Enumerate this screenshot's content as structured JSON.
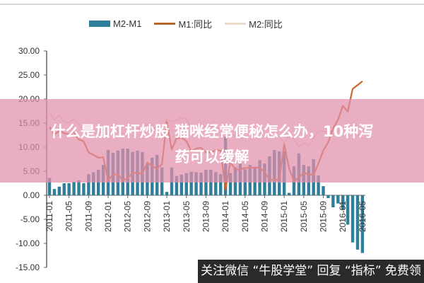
{
  "legend": {
    "items": [
      {
        "label": "M2-M1",
        "type": "bar",
        "color": "#2f7f9a"
      },
      {
        "label": "M1:同比",
        "type": "line",
        "color": "#c8662c"
      },
      {
        "label": "M2:同比",
        "type": "line",
        "color": "#e8d8c8"
      }
    ]
  },
  "overlay": {
    "title_line1": "什么是加杠杆炒股 猫咪经常便秘怎么办，10种泻",
    "title_line2": "药可以缓解"
  },
  "banner": {
    "text": "关注微信 “牛股学堂” 回复 “指标” 免费领"
  },
  "chart_data": {
    "type": "bar",
    "title": "",
    "xlabel": "",
    "ylabel": "",
    "ylim": [
      -15,
      30
    ],
    "yticks": [
      "30.00",
      "25.00",
      "20.00",
      "15.00",
      "10.00",
      "5.00",
      "0.00",
      "-5.00",
      "-10.00",
      "-15.00"
    ],
    "xticks": [
      "2011-01",
      "2011-05",
      "2011-09",
      "2012-01",
      "2012-05",
      "2012-09",
      "2013-01",
      "2013-05",
      "2013-09",
      "2014-01",
      "2014-05",
      "2014-09",
      "2015-01",
      "2015-05",
      "2015-09",
      "2016-01",
      "2016-05"
    ],
    "grid": false,
    "legend_position": "top",
    "x_start": "2011-01",
    "x_end": "2016-05",
    "series": [
      {
        "name": "M2-M1",
        "type": "bar",
        "color": "#2f7f9a",
        "values": [
          3.6,
          1.3,
          1.8,
          2.5,
          2.5,
          2.8,
          3.1,
          2.5,
          4.4,
          4.8,
          5.3,
          6.3,
          9.4,
          8.8,
          9.3,
          9.7,
          9.7,
          9.0,
          9.3,
          9.0,
          6.5,
          7.8,
          8.4,
          5.8,
          0.7,
          5.8,
          4.0,
          4.3,
          4.6,
          4.9,
          4.8,
          4.7,
          5.3,
          5.3,
          4.8,
          4.4,
          12.2,
          4.6,
          5.8,
          6.6,
          5.4,
          6.3,
          5.9,
          7.3,
          6.6,
          8.1,
          9.4,
          9.1,
          9.1,
          0.5,
          6.0,
          8.7,
          6.3,
          6.0,
          7.5,
          4.1,
          1.9,
          -0.6,
          -2.5,
          -1.7,
          -3.0,
          -6.1,
          -9.8,
          -11.3,
          -12.0
        ]
      },
      {
        "name": "M1:同比",
        "type": "line",
        "color": "#c8662c",
        "values": [
          14.2,
          12.6,
          13.4,
          12.9,
          12.7,
          13.1,
          11.6,
          11.2,
          8.9,
          8.4,
          7.8,
          7.9,
          3.1,
          4.3,
          4.4,
          3.1,
          3.5,
          4.7,
          4.6,
          4.5,
          6.8,
          6.1,
          5.5,
          6.5,
          15.3,
          9.5,
          11.9,
          11.9,
          11.3,
          9.1,
          9.7,
          9.9,
          8.9,
          8.9,
          9.4,
          9.3,
          1.2,
          6.9,
          5.4,
          5.3,
          5.7,
          5.7,
          5.8,
          5.7,
          4.8,
          3.2,
          3.2,
          3.2,
          10.6,
          5.6,
          2.9,
          3.7,
          4.7,
          4.3,
          4.3,
          6.6,
          9.3,
          11.0,
          13.9,
          15.7,
          18.6,
          17.4,
          22.1,
          22.9,
          23.7
        ]
      },
      {
        "name": "M2:同比",
        "type": "line",
        "color": "#e8d8c8",
        "values": [
          17.2,
          15.7,
          16.6,
          15.3,
          15.1,
          15.9,
          14.7,
          13.5,
          13.0,
          12.9,
          12.7,
          13.6,
          12.4,
          13.0,
          13.4,
          12.8,
          13.2,
          13.6,
          13.9,
          13.5,
          14.8,
          14.1,
          13.9,
          13.8,
          15.9,
          15.2,
          15.7,
          16.1,
          15.8,
          14.0,
          14.5,
          14.7,
          14.2,
          14.3,
          14.2,
          13.6,
          13.2,
          13.3,
          12.1,
          13.2,
          13.4,
          14.7,
          13.5,
          12.8,
          12.9,
          12.6,
          12.3,
          12.2,
          10.8,
          12.5,
          11.6,
          10.1,
          10.8,
          10.2,
          11.8,
          13.3,
          13.3,
          13.1,
          13.5,
          13.3,
          13.3,
          14.0,
          13.4,
          12.8,
          11.8
        ]
      }
    ],
    "notes": "Series M2-M1 bars are partially obscured by a pink overlay band between y≈20 and y≈3; values estimated from visible bar heights."
  }
}
